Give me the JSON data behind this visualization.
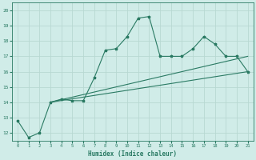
{
  "xlabel": "Humidex (Indice chaleur)",
  "xlim": [
    -0.5,
    21.5
  ],
  "ylim": [
    11.5,
    20.5
  ],
  "xticks": [
    0,
    1,
    2,
    3,
    4,
    5,
    6,
    7,
    8,
    9,
    10,
    11,
    12,
    13,
    14,
    15,
    16,
    17,
    18,
    19,
    20,
    21
  ],
  "yticks": [
    12,
    13,
    14,
    15,
    16,
    17,
    18,
    19,
    20
  ],
  "line1_x": [
    0,
    1,
    2,
    3,
    4,
    5,
    6,
    7,
    8,
    9,
    10,
    11,
    12,
    13,
    14,
    15,
    16,
    17,
    18,
    19,
    20,
    21
  ],
  "line1_y": [
    12.8,
    11.7,
    12.0,
    14.0,
    14.2,
    14.1,
    14.1,
    15.6,
    17.4,
    17.5,
    18.3,
    19.5,
    19.6,
    17.0,
    17.0,
    17.0,
    17.5,
    18.3,
    17.8,
    17.0,
    17.0,
    16.0
  ],
  "line2_x": [
    3,
    21
  ],
  "line2_y": [
    14.0,
    16.0
  ],
  "line3_x": [
    3,
    21
  ],
  "line3_y": [
    14.0,
    17.0
  ],
  "line_color": "#2a7a63",
  "bg_color": "#d0ece8",
  "grid_color": "#b8d8d2",
  "spine_color": "#2a7a63"
}
